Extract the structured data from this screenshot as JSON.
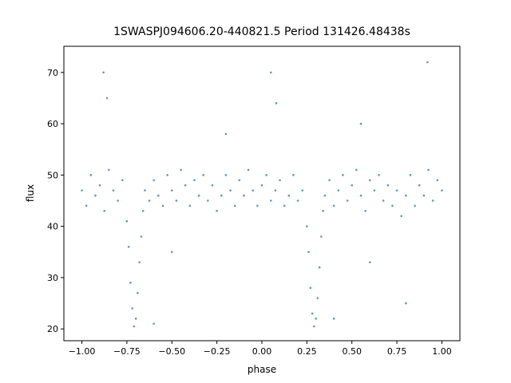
{
  "chart_data": {
    "type": "scatter",
    "title": "1SWASPJ094606.20-440821.5 Period 131426.48438s",
    "xlabel": "phase",
    "ylabel": "flux",
    "color": "#1f77b4",
    "x": [
      -1.0,
      -0.975,
      -0.95,
      -0.925,
      -0.9,
      -0.875,
      -0.85,
      -0.825,
      -0.8,
      -0.775,
      -0.75,
      -0.74,
      -0.73,
      -0.72,
      -0.71,
      -0.7,
      -0.69,
      -0.68,
      -0.67,
      -0.66,
      -0.65,
      -0.625,
      -0.6,
      -0.575,
      -0.55,
      -0.525,
      -0.5,
      -0.475,
      -0.45,
      -0.425,
      -0.4,
      -0.375,
      -0.35,
      -0.325,
      -0.3,
      -0.275,
      -0.25,
      -0.225,
      -0.2,
      -0.175,
      -0.15,
      -0.125,
      -0.1,
      -0.075,
      -0.05,
      -0.025,
      0,
      0.025,
      0.05,
      0.075,
      0.1,
      0.125,
      0.15,
      0.175,
      0.2,
      0.225,
      0.25,
      0.26,
      0.27,
      0.28,
      0.29,
      0.3,
      0.31,
      0.32,
      0.33,
      0.34,
      0.35,
      0.375,
      0.4,
      0.425,
      0.45,
      0.475,
      0.5,
      0.525,
      0.55,
      0.575,
      0.6,
      0.625,
      0.65,
      0.675,
      0.7,
      0.725,
      0.75,
      0.775,
      0.8,
      0.825,
      0.85,
      0.875,
      0.9,
      0.925,
      0.95,
      0.975,
      1.0,
      -0.88,
      -0.86,
      0.05,
      0.08,
      -0.6,
      0.4,
      0.8,
      -0.2,
      0.55,
      0.92,
      -0.5,
      0.6
    ],
    "values": [
      47,
      44,
      50,
      46,
      48,
      43,
      51,
      47,
      45,
      49,
      41,
      36,
      29,
      24,
      20.5,
      22,
      27,
      33,
      38,
      43,
      47,
      45,
      49,
      46,
      44,
      50,
      47,
      45,
      51,
      48,
      44,
      49,
      46,
      50,
      45,
      48,
      43,
      46,
      50,
      47,
      44,
      49,
      46,
      51,
      47,
      44,
      48,
      50,
      45,
      47,
      49,
      44,
      46,
      50,
      45,
      47,
      40,
      35,
      28,
      23,
      20.5,
      22,
      26,
      32,
      38,
      43,
      46,
      49,
      44,
      47,
      50,
      45,
      48,
      51,
      46,
      43,
      49,
      47,
      50,
      45,
      48,
      44,
      47,
      42,
      46,
      50,
      44,
      48,
      46,
      51,
      45,
      49,
      47,
      70,
      65,
      70,
      64,
      21,
      22,
      25,
      58,
      60,
      72,
      35,
      33
    ],
    "xlim": [
      -1.1,
      1.1
    ],
    "xticks": [
      {
        "value": -1,
        "label": "−1.00"
      },
      {
        "value": -0.75,
        "label": "−0.75"
      },
      {
        "value": -0.5,
        "label": "−0.50"
      },
      {
        "value": -0.25,
        "label": "−0.25"
      },
      {
        "value": 0,
        "label": "0.00"
      },
      {
        "value": 0.25,
        "label": "0.25"
      },
      {
        "value": 0.5,
        "label": "0.50"
      },
      {
        "value": 0.75,
        "label": "0.75"
      },
      {
        "value": 1,
        "label": "1.00"
      }
    ],
    "ylim": [
      17.7,
      75.1
    ],
    "yticks": [
      20,
      30,
      40,
      50,
      60,
      70
    ]
  }
}
